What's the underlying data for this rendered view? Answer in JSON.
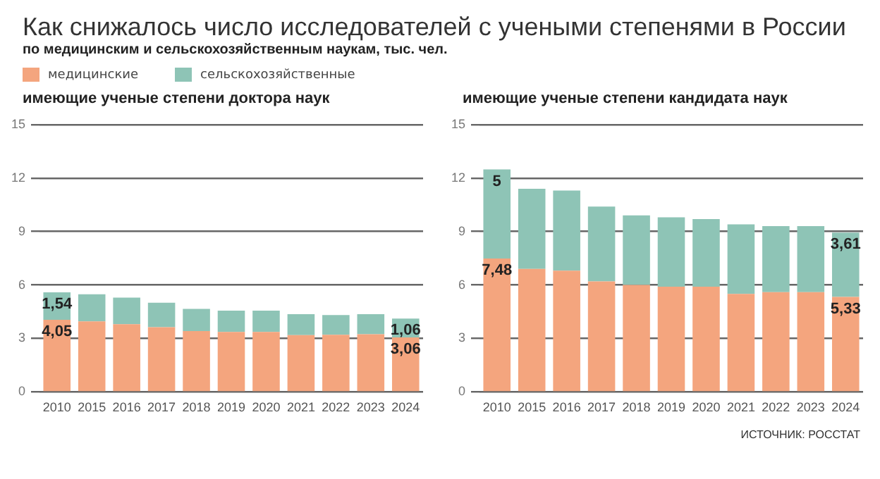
{
  "chart_data": [
    {
      "type": "bar",
      "title": "Как снижалось число исследователей с учеными степенями в России",
      "annotations": [
        "по медицинским и сельскохозяйственным наукам, тыс. чел."
      ],
      "subtitle": "имеющие ученые степени доктора наук",
      "stacked": true,
      "legend": "top left",
      "grid": "y",
      "categories": [
        "2010",
        "2015",
        "2016",
        "2017",
        "2018",
        "2019",
        "2020",
        "2021",
        "2022",
        "2023",
        "2024"
      ],
      "ylim": [
        0,
        15
      ],
      "yticks": [
        0,
        3,
        6,
        9,
        12,
        15
      ],
      "series": [
        {
          "name": "медицинские",
          "color": "#f4a57e",
          "values": [
            4.05,
            3.96,
            3.8,
            3.63,
            3.41,
            3.36,
            3.36,
            3.19,
            3.21,
            3.24,
            3.06
          ],
          "value_labels": [
            "4,05",
            null,
            null,
            null,
            null,
            null,
            null,
            null,
            null,
            null,
            "3,06"
          ]
        },
        {
          "name": "сельскохозяйственные",
          "color": "#8ec4b6",
          "values": [
            1.54,
            1.52,
            1.49,
            1.37,
            1.25,
            1.2,
            1.2,
            1.17,
            1.1,
            1.12,
            1.06
          ],
          "value_labels": [
            "1,54",
            null,
            null,
            null,
            null,
            null,
            null,
            null,
            null,
            null,
            "1,06"
          ]
        }
      ]
    },
    {
      "type": "bar",
      "subtitle": "имеющие ученые степени кандидата наук",
      "annotations": [
        "ИСТОЧНИК: РОССТАТ"
      ],
      "stacked": true,
      "grid": "y",
      "categories": [
        "2010",
        "2015",
        "2016",
        "2017",
        "2018",
        "2019",
        "2020",
        "2021",
        "2022",
        "2023",
        "2024"
      ],
      "ylim": [
        0,
        15
      ],
      "yticks": [
        0,
        3,
        6,
        9,
        12,
        15
      ],
      "series": [
        {
          "color": "#f4a57e",
          "values": [
            7.48,
            6.9,
            6.8,
            6.2,
            6.0,
            5.9,
            5.9,
            5.5,
            5.6,
            5.6,
            5.33
          ],
          "value_labels": [
            "7,48",
            null,
            null,
            null,
            null,
            null,
            null,
            null,
            null,
            null,
            "5,33"
          ]
        },
        {
          "color": "#8ec4b6",
          "values": [
            5,
            4.5,
            4.5,
            4.2,
            3.9,
            3.9,
            3.8,
            3.9,
            3.7,
            3.7,
            3.61
          ],
          "value_labels": [
            "5",
            null,
            null,
            null,
            null,
            null,
            null,
            null,
            null,
            null,
            "3,61"
          ]
        }
      ]
    }
  ]
}
